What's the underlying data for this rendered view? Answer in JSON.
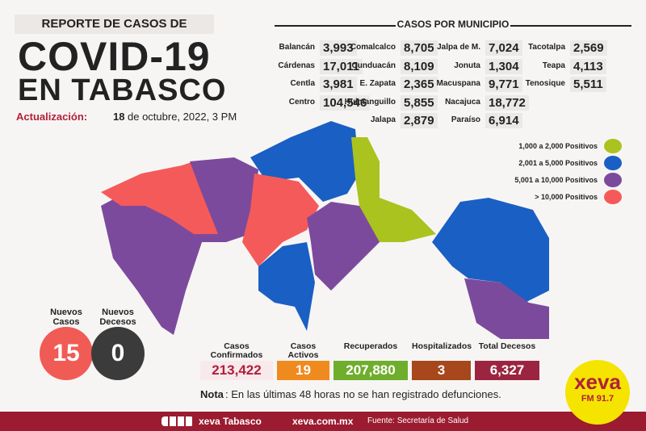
{
  "header": {
    "report_label": "REPORTE DE CASOS DE",
    "title_line1": "COVID-19",
    "title_line2": "EN TABASCO"
  },
  "update": {
    "label": "Actualización:",
    "day": "18",
    "rest": "de octubre, 2022, 3 PM"
  },
  "municipalities": {
    "title": "CASOS POR MUNICIPIO",
    "columns": [
      [
        {
          "name": "Balancán",
          "cases": "3,993"
        },
        {
          "name": "Cárdenas",
          "cases": "17,011"
        },
        {
          "name": "Centla",
          "cases": "3,981"
        },
        {
          "name": "Centro",
          "cases": "104,546"
        }
      ],
      [
        {
          "name": "Comalcalco",
          "cases": "8,705"
        },
        {
          "name": "Cunduacán",
          "cases": "8,109"
        },
        {
          "name": "E. Zapata",
          "cases": "2,365"
        },
        {
          "name": "Huimanguillo",
          "cases": "5,855"
        },
        {
          "name": "Jalapa",
          "cases": "2,879"
        }
      ],
      [
        {
          "name": "Jalpa de M.",
          "cases": "7,024"
        },
        {
          "name": "Jonuta",
          "cases": "1,304"
        },
        {
          "name": "Macuspana",
          "cases": "9,771"
        },
        {
          "name": "Nacajuca",
          "cases": "18,772"
        },
        {
          "name": "Paraíso",
          "cases": "6,914"
        }
      ],
      [
        {
          "name": "Tacotalpa",
          "cases": "2,569"
        },
        {
          "name": "Teapa",
          "cases": "4,113"
        },
        {
          "name": "Tenosique",
          "cases": "5,511"
        }
      ]
    ]
  },
  "legend": [
    {
      "label": "1,000 a 2,000 Positivos",
      "color": "#aac31e"
    },
    {
      "label": "2,001 a 5,000 Positivos",
      "color": "#1a5fc4"
    },
    {
      "label": "5,001 a 10,000 Positivos",
      "color": "#7c4a9c"
    },
    {
      "label": "> 10,000 Positivos",
      "color": "#f55a5a"
    }
  ],
  "daily": [
    {
      "label": "Nuevos Casos",
      "value": "15",
      "color": "#f15b55"
    },
    {
      "label": "Nuevos Decesos",
      "value": "0",
      "color": "#3b3b3b"
    }
  ],
  "summary": [
    {
      "label": "Casos Confirmados",
      "value": "213,422",
      "bg": "#f7e9ec",
      "fg": "#b0203a"
    },
    {
      "label": "Casos Activos",
      "value": "19",
      "bg": "#ef8a1f",
      "fg": "#ffffff"
    },
    {
      "label": "Recuperados",
      "value": "207,880",
      "bg": "#6fae2c",
      "fg": "#ffffff"
    },
    {
      "label": "Hospitalizados",
      "value": "3",
      "bg": "#a6471c",
      "fg": "#ffffff"
    },
    {
      "label": "Total Decesos",
      "value": "6,327",
      "bg": "#9b2540",
      "fg": "#ffffff"
    }
  ],
  "note": {
    "bold": "Nota",
    "text": ": En las últimas 48 horas no se han registrado defunciones."
  },
  "footer": {
    "brand": "xeva Tabasco",
    "site": "xeva.com.mx",
    "source": "Fuente: Secretaría de Salud"
  },
  "logo": {
    "name": "xeva",
    "station": "FM 91.7"
  }
}
